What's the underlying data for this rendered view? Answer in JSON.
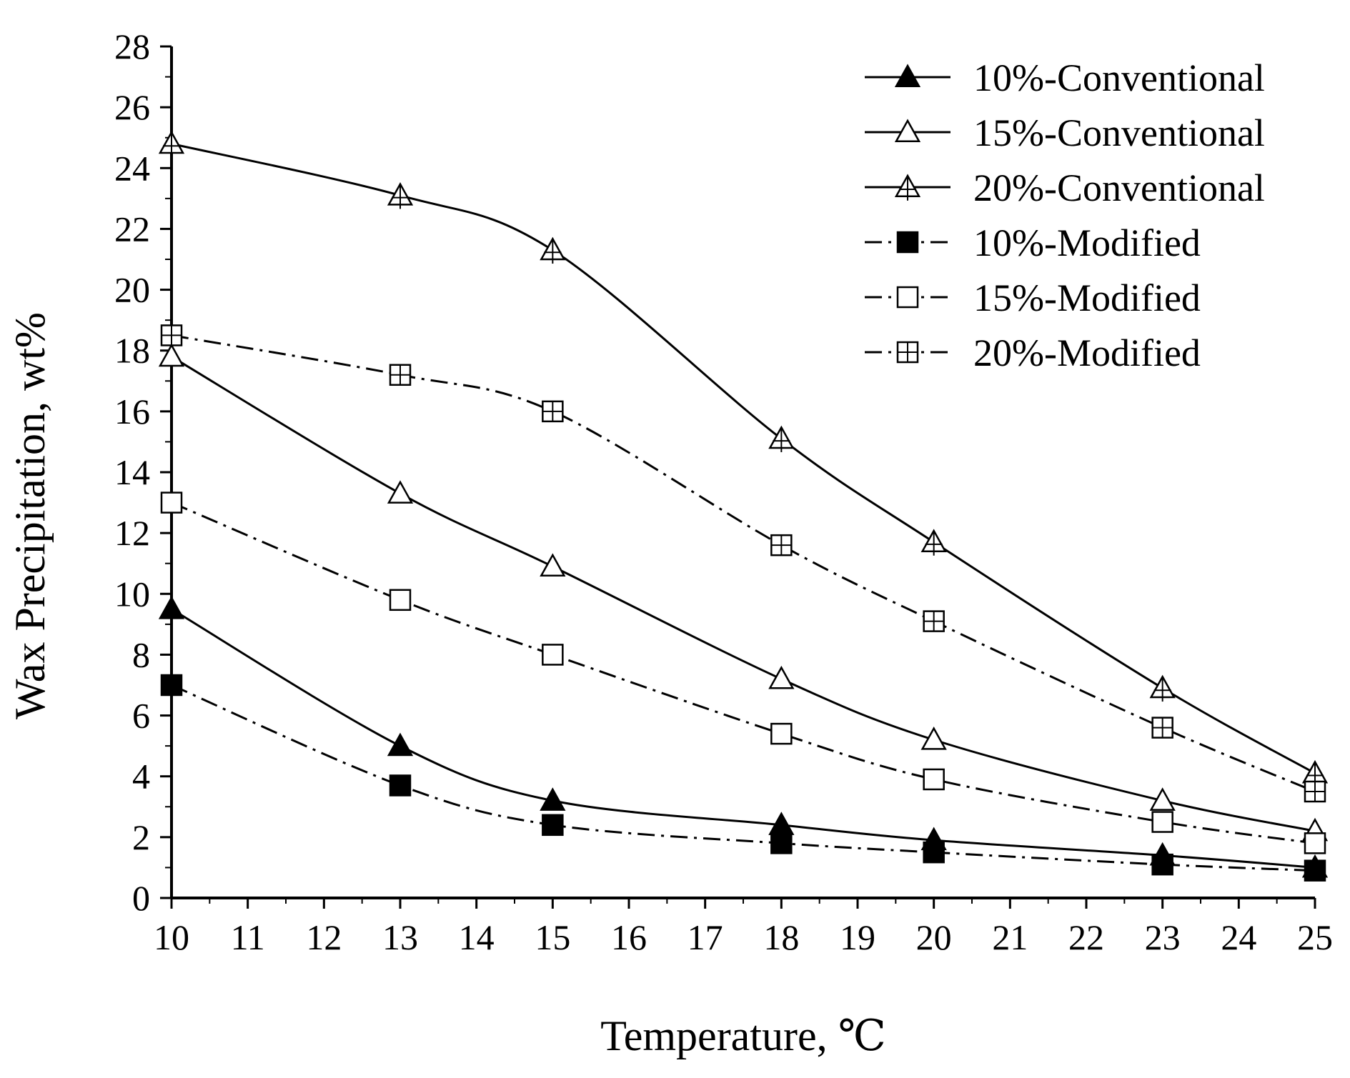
{
  "chart_data": {
    "type": "line",
    "title": "",
    "xlabel": "Temperature, ℃",
    "ylabel": "Wax Precipitation, wt%",
    "xlim": [
      10,
      25
    ],
    "ylim": [
      0,
      28
    ],
    "x_major_ticks": [
      10,
      11,
      12,
      13,
      14,
      15,
      16,
      17,
      18,
      19,
      20,
      21,
      22,
      23,
      24,
      25
    ],
    "x_tick_labels": [
      "10",
      "11",
      "12",
      "13",
      "14",
      "15",
      "16",
      "17",
      "18",
      "19",
      "20",
      "21",
      "22",
      "23",
      "24",
      "25"
    ],
    "y_major_ticks": [
      0,
      2,
      4,
      6,
      8,
      10,
      12,
      14,
      16,
      18,
      20,
      22,
      24,
      26,
      28
    ],
    "y_tick_labels": [
      "0",
      "2",
      "4",
      "6",
      "8",
      "10",
      "12",
      "14",
      "16",
      "18",
      "20",
      "22",
      "24",
      "26",
      "28"
    ],
    "grid": false,
    "legend_position": "top-right",
    "x": [
      10,
      13,
      15,
      18,
      20,
      23,
      25
    ],
    "series": [
      {
        "name": "10%-Conventional",
        "marker": "filled-triangle",
        "line": "solid",
        "values": [
          9.5,
          5.0,
          3.2,
          2.4,
          1.9,
          1.4,
          1.0
        ]
      },
      {
        "name": "15%-Conventional",
        "marker": "open-triangle",
        "line": "solid",
        "values": [
          17.8,
          13.3,
          10.9,
          7.2,
          5.2,
          3.2,
          2.2
        ]
      },
      {
        "name": "20%-Conventional",
        "marker": "crossed-triangle",
        "line": "solid",
        "values": [
          24.8,
          23.1,
          21.3,
          15.1,
          11.7,
          6.9,
          4.1
        ]
      },
      {
        "name": "10%-Modified",
        "marker": "filled-square",
        "line": "dash-dot",
        "values": [
          7.0,
          3.7,
          2.4,
          1.8,
          1.5,
          1.1,
          0.9
        ]
      },
      {
        "name": "15%-Modified",
        "marker": "open-square",
        "line": "dash-dot",
        "values": [
          13.0,
          9.8,
          8.0,
          5.4,
          3.9,
          2.5,
          1.8
        ]
      },
      {
        "name": "20%-Modified",
        "marker": "crossed-square",
        "line": "dash-dot",
        "values": [
          18.5,
          17.2,
          16.0,
          11.6,
          9.1,
          5.6,
          3.5
        ]
      }
    ]
  }
}
